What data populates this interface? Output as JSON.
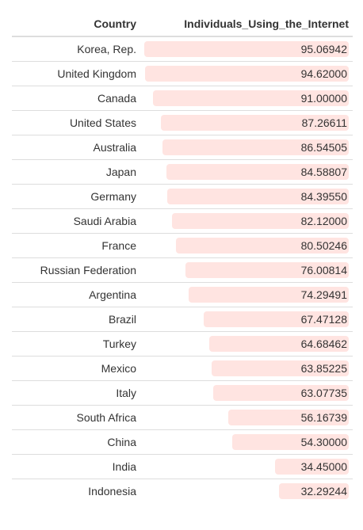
{
  "table": {
    "headers": {
      "country": "Country",
      "value": "Individuals_Using_the_Internet"
    },
    "bar_color": "#ffe4e1"
  },
  "chart_data": {
    "type": "table",
    "columns": [
      "Country",
      "Individuals_Using_the_Internet"
    ],
    "rows": [
      {
        "country": "Korea, Rep.",
        "value": 95.06942,
        "label": "95.06942"
      },
      {
        "country": "United Kingdom",
        "value": 94.62,
        "label": "94.62000"
      },
      {
        "country": "Canada",
        "value": 91.0,
        "label": "91.00000"
      },
      {
        "country": "United States",
        "value": 87.26611,
        "label": "87.26611"
      },
      {
        "country": "Australia",
        "value": 86.54505,
        "label": "86.54505"
      },
      {
        "country": "Japan",
        "value": 84.58807,
        "label": "84.58807"
      },
      {
        "country": "Germany",
        "value": 84.3955,
        "label": "84.39550"
      },
      {
        "country": "Saudi Arabia",
        "value": 82.12,
        "label": "82.12000"
      },
      {
        "country": "France",
        "value": 80.50246,
        "label": "80.50246"
      },
      {
        "country": "Russian Federation",
        "value": 76.00814,
        "label": "76.00814"
      },
      {
        "country": "Argentina",
        "value": 74.29491,
        "label": "74.29491"
      },
      {
        "country": "Brazil",
        "value": 67.47128,
        "label": "67.47128"
      },
      {
        "country": "Turkey",
        "value": 64.68462,
        "label": "64.68462"
      },
      {
        "country": "Mexico",
        "value": 63.85225,
        "label": "63.85225"
      },
      {
        "country": "Italy",
        "value": 63.07735,
        "label": "63.07735"
      },
      {
        "country": "South Africa",
        "value": 56.16739,
        "label": "56.16739"
      },
      {
        "country": "China",
        "value": 54.3,
        "label": "54.30000"
      },
      {
        "country": "India",
        "value": 34.45,
        "label": "34.45000"
      },
      {
        "country": "Indonesia",
        "value": 32.29244,
        "label": "32.29244"
      }
    ]
  }
}
